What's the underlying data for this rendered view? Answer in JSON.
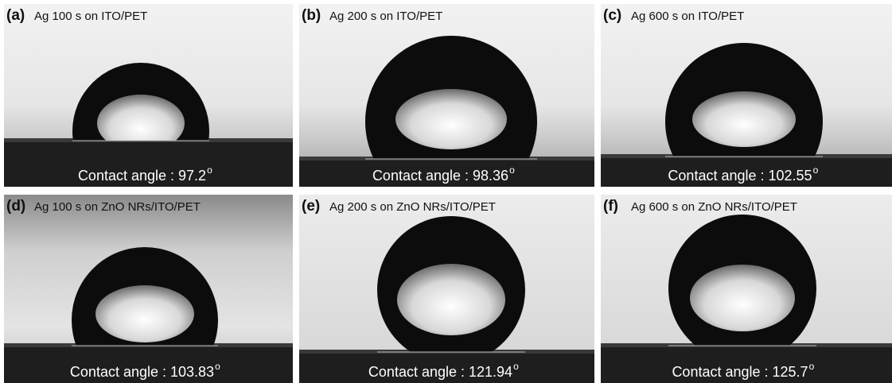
{
  "panels": [
    {
      "tag": "(a)",
      "caption": "Ag 100 s on ITO/PET",
      "angle_text": "Contact angle : 97.2",
      "degree": "o"
    },
    {
      "tag": "(b)",
      "caption": "Ag 200 s on ITO/PET",
      "angle_text": "Contact angle : 98.36",
      "degree": "o"
    },
    {
      "tag": "(c)",
      "caption": "Ag 600 s on ITO/PET",
      "angle_text": "Contact angle : 102.55",
      "degree": "o"
    },
    {
      "tag": "(d)",
      "caption": "Ag 100 s on ZnO NRs/ITO/PET",
      "angle_text": "Contact angle : 103.83",
      "degree": "o"
    },
    {
      "tag": "(e)",
      "caption": "Ag 200 s on ZnO NRs/ITO/PET",
      "angle_text": "Contact angle : 121.94",
      "degree": "o"
    },
    {
      "tag": "(f)",
      "caption": "Ag 600 s on ZnO NRs/ITO/PET",
      "angle_text": "Contact angle : 125.7",
      "degree": "o"
    }
  ]
}
